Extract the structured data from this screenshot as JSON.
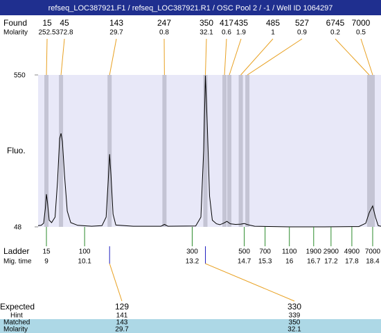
{
  "chart_data": {
    "type": "line",
    "title": "refseq_LOC387921.F1 / refseq_LOC387921.R1 / OSC Pool 2 / -1 / Well ID 1064297",
    "ylabel": "Fluo.",
    "xlim": [
      8.76,
      18.64
    ],
    "ylim": [
      48,
      550
    ],
    "yticks": [
      48,
      550
    ],
    "color": "#000000",
    "x": [
      8.76,
      8.85,
      8.92,
      8.97,
      9.0,
      9.03,
      9.08,
      9.15,
      9.25,
      9.32,
      9.38,
      9.42,
      9.46,
      9.52,
      9.6,
      9.7,
      9.9,
      10.3,
      10.6,
      10.72,
      10.78,
      10.82,
      10.86,
      10.92,
      11.0,
      11.5,
      12.3,
      12.4,
      12.5,
      13.3,
      13.45,
      13.53,
      13.58,
      13.63,
      13.7,
      13.78,
      13.9,
      14.0,
      14.1,
      14.2,
      14.3,
      14.45,
      14.6,
      14.7,
      14.8,
      15.0,
      16,
      17,
      18.0,
      18.2,
      18.3,
      18.4,
      18.48,
      18.56,
      18.64
    ],
    "values": [
      52,
      53,
      60,
      110,
      156,
      130,
      70,
      62,
      80,
      200,
      340,
      357,
      330,
      220,
      100,
      62,
      53,
      50,
      52,
      80,
      200,
      288,
      220,
      90,
      54,
      50,
      50,
      56,
      50,
      51,
      80,
      300,
      548,
      400,
      150,
      70,
      58,
      55,
      60,
      66,
      58,
      56,
      57,
      59,
      55,
      50,
      48,
      48,
      49,
      60,
      95,
      117,
      80,
      52,
      50
    ],
    "found": {
      "label": "Found",
      "molarity_label": "Molarity",
      "sizes": [
        15,
        45,
        143,
        247,
        350,
        417,
        435,
        485,
        527,
        6745,
        7000
      ],
      "molarity": [
        252.5,
        372.8,
        29.7,
        0.8,
        32.1,
        0.6,
        1.9,
        1,
        0.9,
        0.2,
        0.5
      ],
      "times": [
        9.0,
        9.42,
        10.82,
        12.4,
        13.58,
        14.13,
        14.27,
        14.6,
        14.79,
        18.3,
        18.4
      ]
    },
    "ladder": {
      "label": "Ladder",
      "time_label": "Mig. time",
      "sizes": [
        15,
        100,
        300,
        500,
        700,
        1100,
        1900,
        2900,
        4900,
        7000
      ],
      "times": [
        9,
        10.1,
        13.2,
        14.7,
        15.3,
        16,
        16.7,
        17.2,
        17.8,
        18.4
      ]
    },
    "expected": {
      "expected_label": "Expected",
      "hint_label": "Hint",
      "matched_label": "Matched",
      "molarity_label": "Molarity",
      "expected": [
        129,
        330
      ],
      "hint": [
        141,
        339
      ],
      "matched": [
        143,
        350
      ],
      "molarity": [
        29.7,
        32.1
      ]
    }
  }
}
